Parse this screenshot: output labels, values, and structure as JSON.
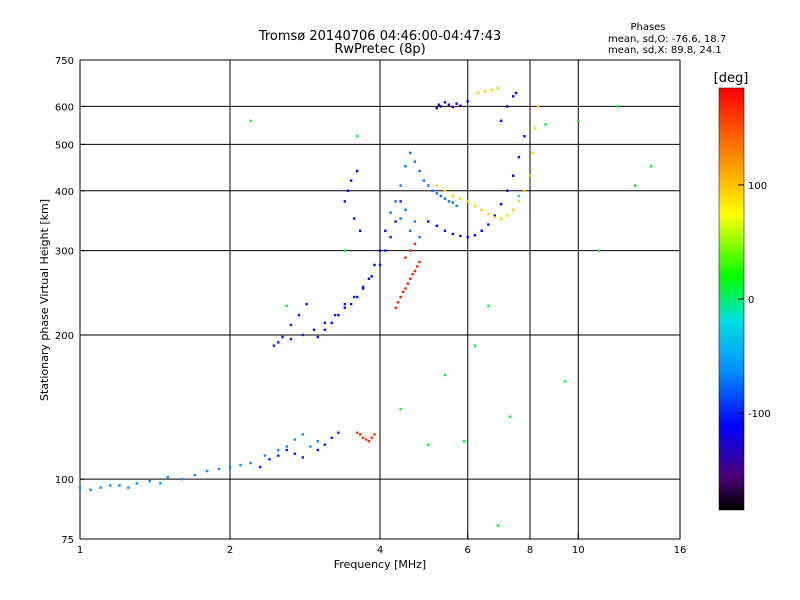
{
  "header": {
    "title": "Tromsø 20140706 04:46:00-04:47:43",
    "subtitle": "RwPretec (8p)"
  },
  "stats": {
    "heading": "Phases",
    "line1": "mean, sd,O: -76.6, 18.7",
    "line2": "mean, sd,X:  89.8, 24.1"
  },
  "colorbar": {
    "label": "[deg]",
    "ticks": [
      {
        "value": 100,
        "label": "100"
      },
      {
        "value": 0,
        "label": "0"
      },
      {
        "value": -100,
        "label": "-100"
      }
    ],
    "range": [
      -185,
      185
    ]
  },
  "chart_data": {
    "type": "scatter",
    "xlabel": "Frequency [MHz]",
    "ylabel": "Stationary phase Virtual Height [km]",
    "xscale": "log",
    "yscale": "log",
    "xlim": [
      1,
      16
    ],
    "ylim": [
      75,
      750
    ],
    "xticks": [
      {
        "value": 1,
        "label": "1"
      },
      {
        "value": 2,
        "label": "2"
      },
      {
        "value": 4,
        "label": "4"
      },
      {
        "value": 6,
        "label": "6"
      },
      {
        "value": 8,
        "label": "8"
      },
      {
        "value": 10,
        "label": "10"
      },
      {
        "value": 16,
        "label": "16"
      }
    ],
    "yticks": [
      {
        "value": 75,
        "label": "75"
      },
      {
        "value": 100,
        "label": "100"
      },
      {
        "value": 200,
        "label": "200"
      },
      {
        "value": 300,
        "label": "300"
      },
      {
        "value": 400,
        "label": "400"
      },
      {
        "value": 500,
        "label": "500"
      },
      {
        "value": 600,
        "label": "600"
      },
      {
        "value": 750,
        "label": "750"
      }
    ],
    "grid_x": [
      2,
      4,
      6,
      8,
      10
    ],
    "grid_y": [
      100,
      200,
      300,
      400,
      500,
      600
    ],
    "color_scale": "rainbow phase (deg)",
    "series": [
      {
        "phase": -60,
        "x": [
          1.0,
          1.05,
          1.1,
          1.15,
          1.2,
          1.25,
          1.3,
          1.38,
          1.45,
          1.5,
          1.6,
          1.7,
          1.8,
          1.9,
          2.0,
          2.1,
          2.2,
          2.35,
          2.5,
          2.6,
          2.7,
          2.8,
          2.9,
          3.0
        ],
        "y": [
          96,
          95,
          96,
          97,
          97,
          96,
          98,
          99,
          98,
          101,
          100,
          102,
          104,
          105,
          106,
          107,
          108,
          112,
          115,
          117,
          121,
          124,
          117,
          120
        ]
      },
      {
        "phase": -100,
        "x": [
          2.3,
          2.4,
          2.5,
          2.6,
          2.7,
          2.8,
          3.0,
          3.1,
          3.2,
          3.3,
          2.5,
          2.65,
          2.8,
          2.95,
          3.1,
          3.25,
          3.4,
          3.55,
          3.7,
          3.85,
          4.0,
          4.1,
          4.2,
          4.3,
          4.4,
          2.45,
          2.55,
          2.65,
          2.75,
          2.85
        ],
        "y": [
          106,
          110,
          112,
          115,
          113,
          111,
          115,
          118,
          122,
          125,
          193,
          196,
          200,
          205,
          212,
          220,
          232,
          240,
          252,
          265,
          280,
          300,
          320,
          345,
          380,
          190,
          198,
          210,
          220,
          232
        ]
      },
      {
        "phase": -105,
        "x": [
          3.0,
          3.1,
          3.2,
          3.3,
          3.4,
          3.5,
          3.6,
          3.7,
          3.8,
          3.9,
          4.0,
          4.1,
          3.6,
          3.5,
          3.45,
          3.4,
          3.55,
          3.65
        ],
        "y": [
          198,
          205,
          212,
          220,
          228,
          232,
          240,
          250,
          262,
          280,
          300,
          330,
          440,
          420,
          400,
          380,
          350,
          330
        ]
      },
      {
        "phase": -70,
        "x": [
          4.2,
          4.3,
          4.4,
          4.5,
          4.6,
          4.7,
          4.8,
          4.9,
          5.0,
          5.1,
          5.2,
          5.3,
          5.4,
          5.5,
          5.6,
          5.7,
          4.4,
          4.5,
          4.6,
          4.7,
          4.8
        ],
        "y": [
          360,
          380,
          410,
          450,
          480,
          460,
          440,
          420,
          410,
          400,
          395,
          390,
          385,
          380,
          378,
          372,
          350,
          365,
          330,
          345,
          320
        ]
      },
      {
        "phase": -110,
        "x": [
          5.0,
          5.2,
          5.4,
          5.6,
          5.8,
          6.0,
          6.2,
          6.4,
          6.6,
          6.8,
          7.0,
          7.2,
          7.4,
          7.6,
          7.8,
          7.0,
          7.2,
          7.4,
          7.5
        ],
        "y": [
          345,
          338,
          330,
          325,
          322,
          320,
          323,
          330,
          340,
          355,
          375,
          400,
          430,
          470,
          520,
          560,
          600,
          630,
          640
        ]
      },
      {
        "phase": -125,
        "x": [
          5.3,
          5.4,
          5.5,
          5.6,
          5.7,
          5.8,
          6.0,
          5.2,
          5.25
        ],
        "y": [
          600,
          612,
          605,
          598,
          608,
          602,
          615,
          595,
          605
        ]
      },
      {
        "phase": 95,
        "x": [
          5.2,
          5.4,
          5.6,
          5.8,
          6.0,
          6.2,
          6.4,
          6.6,
          6.8,
          7.0,
          7.2,
          7.4,
          7.6,
          7.8,
          8.0,
          8.1,
          8.2,
          8.3,
          6.3,
          6.5,
          6.7,
          6.9
        ],
        "y": [
          410,
          400,
          390,
          385,
          380,
          372,
          365,
          358,
          352,
          350,
          355,
          365,
          380,
          400,
          430,
          480,
          540,
          600,
          640,
          645,
          650,
          655
        ]
      },
      {
        "phase": 170,
        "x": [
          4.3,
          4.35,
          4.4,
          4.45,
          4.5,
          4.55,
          4.6,
          4.65,
          4.7,
          4.75,
          4.8,
          4.5,
          4.6,
          4.7
        ],
        "y": [
          228,
          234,
          240,
          246,
          250,
          256,
          262,
          268,
          272,
          278,
          284,
          290,
          300,
          310
        ]
      },
      {
        "phase": 165,
        "x": [
          3.6,
          3.65,
          3.7,
          3.75,
          3.8,
          3.85,
          3.9
        ],
        "y": [
          125,
          124,
          122,
          121,
          120,
          122,
          124
        ]
      },
      {
        "phase": 10,
        "x": [
          2.2,
          2.6,
          3.4,
          3.6,
          4.4,
          5.0,
          5.4,
          5.9,
          6.2,
          6.6,
          6.9,
          7.3,
          7.6,
          8.6,
          9.4,
          10.0,
          11.0,
          12.0,
          13.0,
          14.0
        ],
        "y": [
          560,
          230,
          300,
          520,
          140,
          118,
          165,
          120,
          190,
          230,
          80,
          135,
          390,
          550,
          160,
          560,
          300,
          600,
          410,
          450
        ]
      }
    ]
  }
}
